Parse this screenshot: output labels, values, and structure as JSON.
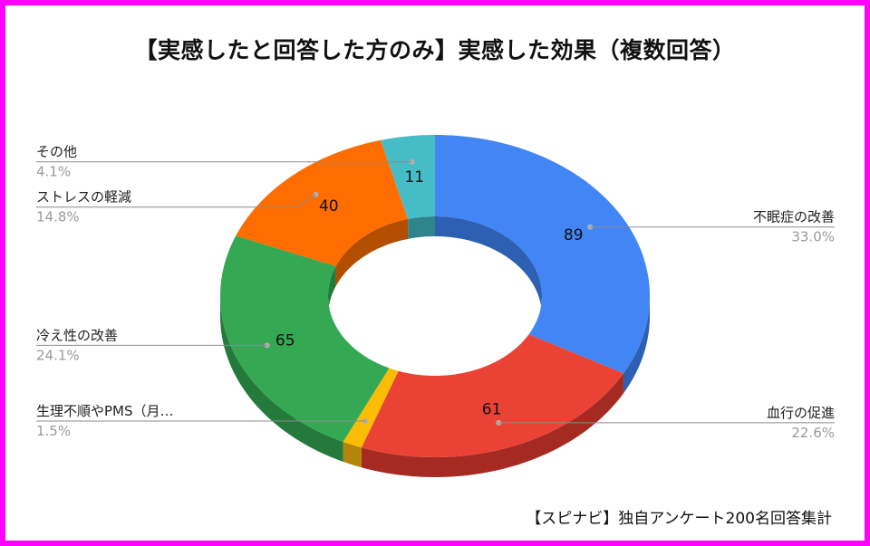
{
  "title": "【実感したと回答した方のみ】実感した効果（複数回答）",
  "footer": "【スピナビ】独自アンケート200名回答集計",
  "chart_data": {
    "type": "pie",
    "title": "【実感したと回答した方のみ】実感した効果（複数回答）",
    "donut": true,
    "style_3d": true,
    "slices": [
      {
        "label": "不眠症の改善",
        "value": 89,
        "percent": "33.0%",
        "color": "#4285f4",
        "side": "#2d5fb3"
      },
      {
        "label": "血行の促進",
        "value": 61,
        "percent": "22.6%",
        "color": "#ea4335",
        "side": "#a52a22"
      },
      {
        "label": "生理不順やPMS（月…",
        "value": 4,
        "percent": "1.5%",
        "color": "#fbbc04",
        "side": "#b3860b"
      },
      {
        "label": "冷え性の改善",
        "value": 65,
        "percent": "24.1%",
        "color": "#34a853",
        "side": "#237a3b"
      },
      {
        "label": "ストレスの軽減",
        "value": 40,
        "percent": "14.8%",
        "color": "#ff6d01",
        "side": "#b34d00"
      },
      {
        "label": "その他",
        "value": 11,
        "percent": "4.1%",
        "color": "#46bdc6",
        "side": "#2f858c"
      }
    ],
    "value_labels_shown": true,
    "legend": "callout labels"
  }
}
